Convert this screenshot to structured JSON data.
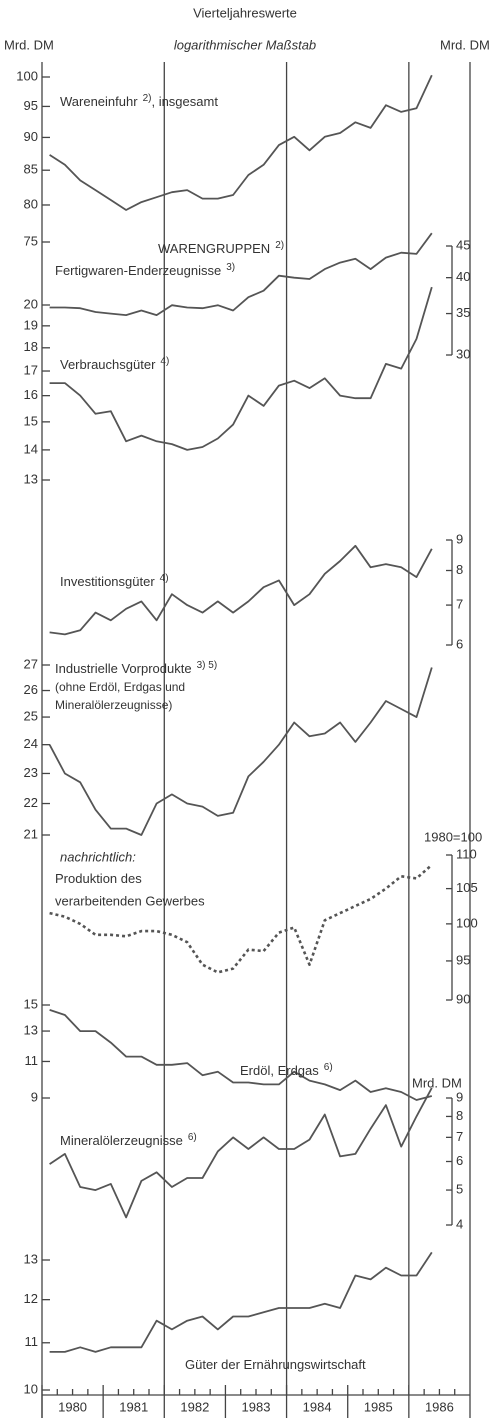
{
  "chart_data": {
    "type": "line",
    "title": "Vierteljahreswerte",
    "subtitle": "logarithmischer Maßstab",
    "ylabel": "Mrd. DM",
    "y2label": "Mrd. DM",
    "log_scale": true,
    "x": [
      1980.125,
      1980.375,
      1980.625,
      1980.875,
      1981.125,
      1981.375,
      1981.625,
      1981.875,
      1982.125,
      1982.375,
      1982.625,
      1982.875,
      1983.125,
      1983.375,
      1983.625,
      1983.875,
      1984.125,
      1984.375,
      1984.625,
      1984.875,
      1985.125,
      1985.375,
      1985.625,
      1985.875,
      1986.125,
      1986.375
    ],
    "xlim": [
      1980,
      1987
    ],
    "xticks": [
      1980,
      1981,
      1982,
      1983,
      1984,
      1985,
      1986
    ],
    "reference_lines_x": [
      1982,
      1984,
      1986
    ],
    "panels": [
      {
        "ylim": [
          75,
          100
        ],
        "yticks": [
          100,
          95,
          90,
          85,
          80,
          75
        ],
        "series": [
          {
            "name": "Wareneinfuhr",
            "note": "2)",
            "suffix": ", insgesamt",
            "color": "#555555",
            "dash": false,
            "values": [
              87.3,
              85.8,
              83.5,
              82.1,
              80.7,
              79.3,
              80.4,
              81.1,
              81.8,
              82.1,
              80.9,
              80.9,
              81.4,
              84.3,
              85.8,
              88.8,
              90.1,
              88.0,
              90.1,
              90.7,
              92.4,
              91.5,
              95.2,
              94.1,
              94.7,
              100.3
            ]
          }
        ]
      },
      {
        "heading": "WARENGRUPPEN",
        "heading_note": "2)",
        "y2lim": [
          30,
          45
        ],
        "y2ticks": [
          45,
          40,
          35,
          30
        ],
        "series": [
          {
            "name": "Fertigwaren-Enderzeugnisse",
            "note": "3)",
            "axis": "y2",
            "color": "#555555",
            "dash": false,
            "values": [
              35.8,
              35.8,
              35.7,
              35.2,
              35.0,
              34.8,
              35.4,
              34.8,
              36.1,
              35.8,
              35.7,
              36.1,
              35.4,
              37.2,
              38.1,
              40.3,
              40.0,
              39.8,
              41.3,
              42.3,
              42.9,
              41.3,
              43.1,
              43.9,
              43.7,
              47.2
            ]
          }
        ]
      },
      {
        "ylim": [
          13,
          20
        ],
        "yticks": [
          20,
          19,
          18,
          17,
          16,
          15,
          14,
          13
        ],
        "series": [
          {
            "name": "Verbrauchsgüter",
            "note": "4)",
            "color": "#555555",
            "dash": false,
            "values": [
              16.5,
              16.5,
              16.0,
              15.3,
              15.4,
              14.3,
              14.5,
              14.3,
              14.2,
              14.0,
              14.1,
              14.4,
              14.9,
              16.0,
              15.6,
              16.4,
              16.6,
              16.3,
              16.7,
              16.0,
              15.9,
              15.9,
              17.3,
              17.1,
              18.4,
              20.9
            ]
          }
        ]
      },
      {
        "y2lim": [
          6,
          9
        ],
        "y2ticks": [
          9,
          8,
          7,
          6
        ],
        "series": [
          {
            "name": "Investitionsgüter",
            "note": "4)",
            "axis": "y2",
            "color": "#555555",
            "dash": false,
            "values": [
              6.3,
              6.25,
              6.35,
              6.8,
              6.6,
              6.9,
              7.1,
              6.6,
              7.3,
              7.0,
              6.8,
              7.1,
              6.8,
              7.1,
              7.5,
              7.7,
              7.0,
              7.3,
              7.9,
              8.3,
              8.8,
              8.1,
              8.2,
              8.1,
              7.8,
              8.7
            ]
          }
        ]
      },
      {
        "ylim": [
          21,
          27
        ],
        "yticks": [
          27,
          26,
          25,
          24,
          23,
          22,
          21
        ],
        "series": [
          {
            "name": "Industrielle Vorprodukte",
            "note": "3) 5)",
            "sub": [
              "(ohne Erdöl, Erdgas und",
              "Mineralölerzeugnisse)"
            ],
            "color": "#555555",
            "dash": false,
            "values": [
              24.0,
              23.0,
              22.7,
              21.8,
              21.2,
              21.2,
              21.0,
              22.0,
              22.3,
              22.0,
              21.9,
              21.6,
              21.7,
              22.9,
              23.4,
              24.0,
              24.8,
              24.3,
              24.4,
              24.8,
              24.1,
              24.8,
              25.6,
              25.3,
              25.0,
              26.9
            ]
          }
        ]
      },
      {
        "y2label": "1980=100",
        "y2lim": [
          90,
          110
        ],
        "y2ticks": [
          110,
          105,
          100,
          95,
          90
        ],
        "series": [
          {
            "prefix": "nachrichtlich:",
            "name": "Produktion des",
            "sub": [
              "verarbeitenden Gewerbes"
            ],
            "axis": "y2",
            "color": "#555555",
            "dash": true,
            "values": [
              101.5,
              101,
              100,
              98.5,
              98.5,
              98.3,
              99,
              99,
              98.5,
              97.5,
              94.5,
              93.5,
              94,
              96.5,
              96.3,
              98.8,
              99.5,
              94.5,
              100.5,
              101.5,
              102.5,
              103.5,
              105,
              106.8,
              106.5,
              108.5
            ]
          }
        ]
      },
      {
        "ylim": [
          9,
          15
        ],
        "yticks": [
          15,
          13,
          11,
          9
        ],
        "series": [
          {
            "name": "Erdöl, Erdgas",
            "note": "6)",
            "color": "#555555",
            "dash": false,
            "values": [
              14.6,
              14.2,
              13.0,
              13.0,
              12.2,
              11.3,
              11.3,
              10.8,
              10.8,
              10.9,
              10.2,
              10.4,
              9.8,
              9.8,
              9.7,
              9.7,
              10.4,
              9.9,
              9.7,
              9.4,
              9.9,
              9.3,
              9.5,
              9.3,
              8.9,
              9.1
            ]
          }
        ]
      },
      {
        "y2label": "Mrd. DM",
        "y2lim": [
          4,
          9
        ],
        "y2ticks": [
          9,
          8,
          7,
          6,
          5,
          4
        ],
        "series": [
          {
            "name": "Mineralölerzeugnisse",
            "note": "6)",
            "axis": "y2",
            "color": "#555555",
            "dash": false,
            "values": [
              5.9,
              6.3,
              5.1,
              5.0,
              5.2,
              4.2,
              5.3,
              5.6,
              5.1,
              5.4,
              5.4,
              6.4,
              7.0,
              6.5,
              7.0,
              6.5,
              6.5,
              6.9,
              8.1,
              6.2,
              6.3,
              7.4,
              8.6,
              6.6,
              8.0,
              9.6
            ]
          }
        ]
      },
      {
        "ylim": [
          10,
          13
        ],
        "yticks": [
          13,
          12,
          11,
          10
        ],
        "series": [
          {
            "name": "Güter der Ernährungswirtschaft",
            "color": "#555555",
            "dash": false,
            "values": [
              10.8,
              10.8,
              10.9,
              10.8,
              10.9,
              10.9,
              10.9,
              11.5,
              11.3,
              11.5,
              11.6,
              11.3,
              11.6,
              11.6,
              11.7,
              11.8,
              11.8,
              11.8,
              11.9,
              11.8,
              12.6,
              12.5,
              12.8,
              12.6,
              12.6,
              13.2
            ]
          }
        ]
      }
    ]
  }
}
